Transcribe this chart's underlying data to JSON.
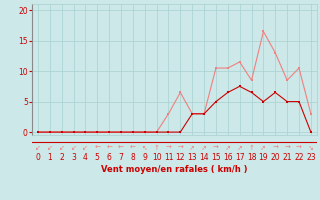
{
  "x": [
    0,
    1,
    2,
    3,
    4,
    5,
    6,
    7,
    8,
    9,
    10,
    11,
    12,
    13,
    14,
    15,
    16,
    17,
    18,
    19,
    20,
    21,
    22,
    23
  ],
  "y_rafales": [
    0,
    0,
    0,
    0,
    0,
    0,
    0,
    0,
    0,
    0,
    0,
    3,
    6.5,
    3,
    3,
    10.5,
    10.5,
    11.5,
    8.5,
    16.5,
    13,
    8.5,
    10.5,
    3
  ],
  "y_moyen": [
    0,
    0,
    0,
    0,
    0,
    0,
    0,
    0,
    0,
    0,
    0,
    0,
    0,
    3,
    3,
    5,
    6.5,
    7.5,
    6.5,
    5,
    6.5,
    5,
    5,
    0
  ],
  "color_rafales": "#f08080",
  "color_moyen": "#cc0000",
  "bg_color": "#cce8e8",
  "grid_color": "#a8d0d0",
  "xlabel": "Vent moyen/en rafales ( km/h )",
  "xlabel_color": "#cc0000",
  "ylabel_ticks": [
    0,
    5,
    10,
    15,
    20
  ],
  "ylim": [
    -0.5,
    21
  ],
  "xlim": [
    -0.5,
    23.5
  ],
  "tick_color": "#cc0000",
  "axis_label_fontsize": 6,
  "tick_fontsize": 5.5,
  "wind_arrows": [
    "↙",
    "↙",
    "↙",
    "↙",
    "↙",
    "←",
    "←",
    "←",
    "←",
    "↖",
    "↑",
    "→",
    "→",
    "↗",
    "↗",
    "→",
    "↗",
    "↗",
    "↑",
    "↗",
    "→",
    "→",
    "→",
    "↘"
  ]
}
